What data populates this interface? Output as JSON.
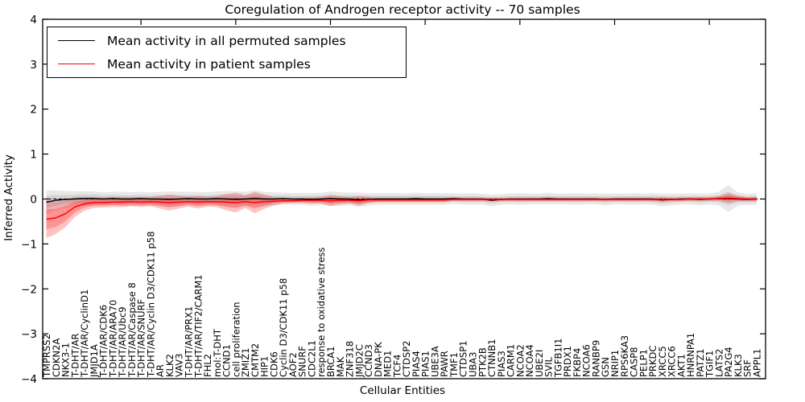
{
  "chart_data": {
    "type": "line",
    "title": "Coregulation of Androgen receptor activity -- 70 samples",
    "xlabel": "Cellular Entities",
    "ylabel": "Inferred Activity",
    "ylim": [
      -4,
      4
    ],
    "yticks": [
      4,
      3,
      2,
      1,
      0,
      -1,
      -2,
      -3,
      -4
    ],
    "x_top_major_ticks": [
      10,
      20,
      30,
      40,
      50,
      60,
      70
    ],
    "grid": false,
    "legend_position": "upper left",
    "zero_reference_line": "dashed black line at y=0",
    "categories": [
      "TMPRSS2",
      "CDKN2A",
      "NKX3-1",
      "T-DHT/AR",
      "T-DHT/AR/CyclinD1",
      "JMJD1A",
      "T-DHT/AR/CDK6",
      "T-DHT/AR/ARA70",
      "T-DHT/AR/Ubc9",
      "T-DHT/AR/Caspase 8",
      "T-DHT/AR/SNURF",
      "T-DHT/AR/Cyclin D3/CDK11 p58",
      "AR",
      "KLK2",
      "VAV3",
      "T-DHT/AR/PRX1",
      "T-DHT/AR/TIF2/CARM1",
      "FHL2",
      "mol:T-DHT",
      "CCND1",
      "cell proliferation",
      "ZMIZ1",
      "CMTM2",
      "HIP1",
      "CDK6",
      "Cyclin D3/CDK11 p58",
      "AOF2",
      "SNURF",
      "CDC2L1",
      "response to oxidative stress",
      "BRCA1",
      "MAK",
      "ZNF318",
      "JMJD2C",
      "CCND3",
      "DNA-PK",
      "MED1",
      "TCF4",
      "CTDSP2",
      "PIAS4",
      "PIAS1",
      "UBE3A",
      "PAWR",
      "TMF1",
      "CTDSP1",
      "UBA3",
      "PTK2B",
      "CTNNB1",
      "PIAS3",
      "CARM1",
      "NCOA2",
      "NCOA4",
      "UBE2I",
      "SVIL",
      "TGFB1I1",
      "PRDX1",
      "FKBP4",
      "NCOA6",
      "RANBP9",
      "GSN",
      "NRIP1",
      "RPS6KA3",
      "CASP8",
      "PELP1",
      "PRKDC",
      "XRCC5",
      "XRCC6",
      "AKT1",
      "HNRNPA1",
      "PATZ1",
      "TGIF1",
      "LATS2",
      "PA2G4",
      "KLK3",
      "SRF",
      "APPL1"
    ],
    "series": [
      {
        "name": "Mean activity in all permuted samples",
        "color": "#000000",
        "band_fill_opacity": 0.09,
        "mean": [
          -0.07,
          -0.03,
          -0.01,
          0,
          0.01,
          0.01,
          0,
          0.01,
          0,
          0,
          0.01,
          0,
          0,
          -0.01,
          0,
          0.01,
          0,
          0,
          0.01,
          0,
          -0.01,
          0,
          0.01,
          0,
          0,
          0.01,
          0,
          0,
          -0.01,
          0,
          0.01,
          0,
          0,
          -0.02,
          -0.01,
          0,
          0,
          0,
          0,
          0.01,
          0,
          0,
          0,
          0.01,
          0,
          0,
          0,
          -0.03,
          -0.01,
          0,
          0,
          0,
          0,
          0.01,
          0,
          0,
          0,
          0,
          0,
          -0.01,
          0,
          0,
          0,
          0,
          0,
          -0.02,
          -0.01,
          0,
          0,
          -0.01,
          0,
          0.01,
          0.01,
          0,
          -0.01,
          0
        ],
        "band_inner_halfwidth": [
          0.14,
          0.12,
          0.1,
          0.09,
          0.09,
          0.09,
          0.08,
          0.08,
          0.09,
          0.08,
          0.08,
          0.08,
          0.09,
          0.1,
          0.09,
          0.08,
          0.09,
          0.08,
          0.09,
          0.1,
          0.1,
          0.09,
          0.1,
          0.09,
          0.08,
          0.07,
          0.07,
          0.07,
          0.08,
          0.08,
          0.09,
          0.08,
          0.08,
          0.09,
          0.08,
          0.07,
          0.07,
          0.07,
          0.07,
          0.07,
          0.07,
          0.07,
          0.07,
          0.06,
          0.06,
          0.07,
          0.06,
          0.07,
          0.06,
          0.06,
          0.07,
          0.06,
          0.06,
          0.07,
          0.06,
          0.06,
          0.07,
          0.06,
          0.06,
          0.07,
          0.06,
          0.06,
          0.07,
          0.06,
          0.07,
          0.08,
          0.07,
          0.06,
          0.06,
          0.07,
          0.06,
          0.08,
          0.15,
          0.08,
          0.07,
          0.07
        ],
        "band_outer_halfwidth": [
          0.26,
          0.22,
          0.19,
          0.17,
          0.16,
          0.16,
          0.15,
          0.15,
          0.16,
          0.15,
          0.15,
          0.15,
          0.16,
          0.18,
          0.16,
          0.15,
          0.16,
          0.15,
          0.16,
          0.18,
          0.18,
          0.16,
          0.18,
          0.16,
          0.15,
          0.13,
          0.13,
          0.13,
          0.14,
          0.14,
          0.16,
          0.15,
          0.14,
          0.16,
          0.14,
          0.13,
          0.13,
          0.13,
          0.13,
          0.13,
          0.13,
          0.13,
          0.13,
          0.12,
          0.12,
          0.13,
          0.12,
          0.13,
          0.12,
          0.12,
          0.13,
          0.12,
          0.12,
          0.13,
          0.12,
          0.12,
          0.13,
          0.12,
          0.12,
          0.13,
          0.12,
          0.12,
          0.13,
          0.12,
          0.13,
          0.14,
          0.13,
          0.12,
          0.12,
          0.13,
          0.12,
          0.15,
          0.3,
          0.15,
          0.12,
          0.13
        ]
      },
      {
        "name": "Mean activity in patient samples",
        "color": "#ff0000",
        "band_fill_opacity": 0.24,
        "mean": [
          -0.45,
          -0.42,
          -0.33,
          -0.18,
          -0.11,
          -0.08,
          -0.08,
          -0.07,
          -0.07,
          -0.06,
          -0.07,
          -0.06,
          -0.07,
          -0.08,
          -0.07,
          -0.06,
          -0.07,
          -0.06,
          -0.06,
          -0.07,
          -0.08,
          -0.06,
          -0.08,
          -0.06,
          -0.05,
          -0.04,
          -0.04,
          -0.03,
          -0.03,
          -0.03,
          -0.04,
          -0.03,
          -0.03,
          -0.04,
          -0.02,
          -0.02,
          -0.02,
          -0.02,
          -0.02,
          -0.02,
          -0.02,
          -0.02,
          -0.02,
          -0.01,
          -0.01,
          -0.01,
          -0.01,
          -0.01,
          -0.01,
          -0.01,
          -0.01,
          -0.01,
          -0.01,
          -0.01,
          -0.01,
          -0.01,
          -0.01,
          -0.01,
          -0.01,
          -0.01,
          -0.01,
          -0.01,
          -0.01,
          -0.01,
          -0.01,
          -0.01,
          -0.01,
          -0.01,
          0,
          0,
          0,
          0.01,
          0.02,
          0.01,
          0,
          0
        ],
        "band_inner_halfwidth": [
          0.22,
          0.2,
          0.17,
          0.12,
          0.08,
          0.07,
          0.06,
          0.06,
          0.06,
          0.06,
          0.06,
          0.06,
          0.08,
          0.1,
          0.08,
          0.06,
          0.08,
          0.06,
          0.07,
          0.1,
          0.12,
          0.08,
          0.13,
          0.09,
          0.05,
          0.03,
          0.03,
          0.03,
          0.04,
          0.04,
          0.07,
          0.05,
          0.04,
          0.06,
          0.04,
          0.03,
          0.03,
          0.03,
          0.03,
          0.03,
          0.03,
          0.03,
          0.03,
          0.02,
          0.02,
          0.02,
          0.02,
          0.02,
          0.02,
          0.02,
          0.02,
          0.02,
          0.02,
          0.02,
          0.02,
          0.02,
          0.02,
          0.02,
          0.02,
          0.02,
          0.02,
          0.02,
          0.02,
          0.02,
          0.02,
          0.03,
          0.02,
          0.02,
          0.02,
          0.02,
          0.02,
          0.03,
          0.06,
          0.03,
          0.02,
          0.03
        ],
        "band_outer_halfwidth": [
          0.42,
          0.36,
          0.3,
          0.22,
          0.15,
          0.12,
          0.11,
          0.11,
          0.11,
          0.1,
          0.11,
          0.1,
          0.14,
          0.18,
          0.14,
          0.11,
          0.14,
          0.11,
          0.12,
          0.18,
          0.22,
          0.14,
          0.24,
          0.16,
          0.09,
          0.06,
          0.05,
          0.06,
          0.07,
          0.07,
          0.12,
          0.09,
          0.07,
          0.11,
          0.07,
          0.05,
          0.05,
          0.05,
          0.05,
          0.05,
          0.05,
          0.05,
          0.05,
          0.04,
          0.04,
          0.04,
          0.04,
          0.04,
          0.04,
          0.04,
          0.04,
          0.04,
          0.04,
          0.04,
          0.04,
          0.04,
          0.04,
          0.04,
          0.04,
          0.04,
          0.04,
          0.04,
          0.04,
          0.04,
          0.04,
          0.05,
          0.04,
          0.04,
          0.04,
          0.04,
          0.04,
          0.05,
          0.11,
          0.06,
          0.04,
          0.05
        ]
      }
    ]
  }
}
